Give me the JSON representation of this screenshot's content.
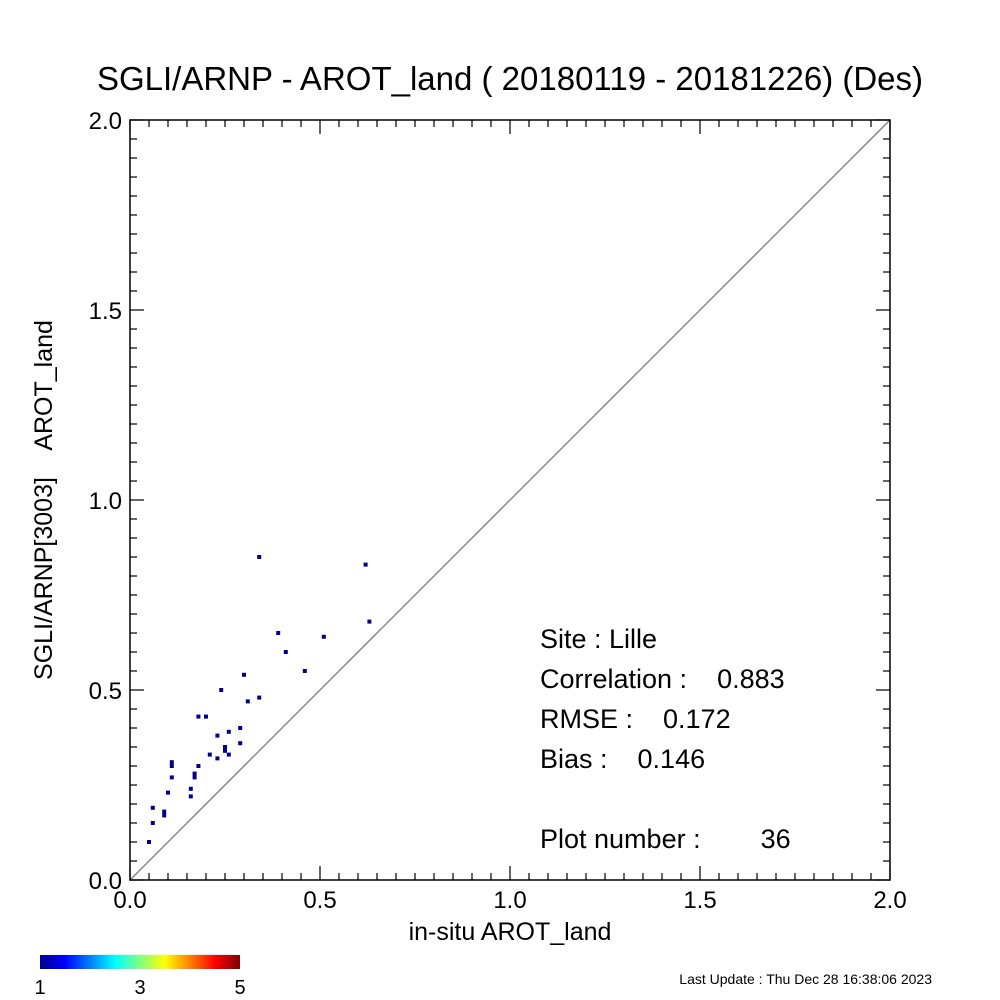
{
  "chart_data": {
    "type": "scatter",
    "title": "SGLI/ARNP - AROT_land ( 20180119 - 20181226) (Des)",
    "xlabel": "in-situ AROT_land",
    "ylabel": "SGLI/ARNP[3003]    AROT_land",
    "xlim": [
      0,
      2
    ],
    "ylim": [
      0,
      2
    ],
    "x_ticks": [
      "0.0",
      "0.5",
      "1.0",
      "1.5",
      "2.0"
    ],
    "y_ticks": [
      "0.0",
      "0.5",
      "1.0",
      "1.5",
      "2.0"
    ],
    "reference_line": "1:1",
    "grid": false,
    "point_color": "#00008b",
    "points": [
      {
        "x": 0.05,
        "y": 0.1
      },
      {
        "x": 0.06,
        "y": 0.15
      },
      {
        "x": 0.06,
        "y": 0.19
      },
      {
        "x": 0.09,
        "y": 0.17
      },
      {
        "x": 0.09,
        "y": 0.18
      },
      {
        "x": 0.1,
        "y": 0.23
      },
      {
        "x": 0.11,
        "y": 0.27
      },
      {
        "x": 0.11,
        "y": 0.3
      },
      {
        "x": 0.11,
        "y": 0.31
      },
      {
        "x": 0.16,
        "y": 0.22
      },
      {
        "x": 0.16,
        "y": 0.24
      },
      {
        "x": 0.17,
        "y": 0.27
      },
      {
        "x": 0.17,
        "y": 0.28
      },
      {
        "x": 0.18,
        "y": 0.3
      },
      {
        "x": 0.18,
        "y": 0.43
      },
      {
        "x": 0.2,
        "y": 0.43
      },
      {
        "x": 0.21,
        "y": 0.33
      },
      {
        "x": 0.23,
        "y": 0.32
      },
      {
        "x": 0.23,
        "y": 0.38
      },
      {
        "x": 0.24,
        "y": 0.5
      },
      {
        "x": 0.25,
        "y": 0.35
      },
      {
        "x": 0.25,
        "y": 0.34
      },
      {
        "x": 0.26,
        "y": 0.33
      },
      {
        "x": 0.26,
        "y": 0.39
      },
      {
        "x": 0.29,
        "y": 0.36
      },
      {
        "x": 0.29,
        "y": 0.4
      },
      {
        "x": 0.3,
        "y": 0.54
      },
      {
        "x": 0.31,
        "y": 0.47
      },
      {
        "x": 0.34,
        "y": 0.48
      },
      {
        "x": 0.34,
        "y": 0.85
      },
      {
        "x": 0.39,
        "y": 0.65
      },
      {
        "x": 0.41,
        "y": 0.6
      },
      {
        "x": 0.46,
        "y": 0.55
      },
      {
        "x": 0.51,
        "y": 0.64
      },
      {
        "x": 0.62,
        "y": 0.83
      },
      {
        "x": 0.63,
        "y": 0.68
      }
    ],
    "stats": {
      "site": "Site : Lille",
      "correlation": "Correlation :    0.883",
      "rmse": "RMSE :    0.172",
      "bias": "Bias :    0.146",
      "plot_number": "Plot number :        36"
    },
    "colorbar": {
      "min": 1,
      "max": 5,
      "ticks": [
        "1",
        "3",
        "5"
      ]
    }
  },
  "footer": {
    "last_update": "Last Update : Thu Dec 28 16:38:06 2023"
  }
}
